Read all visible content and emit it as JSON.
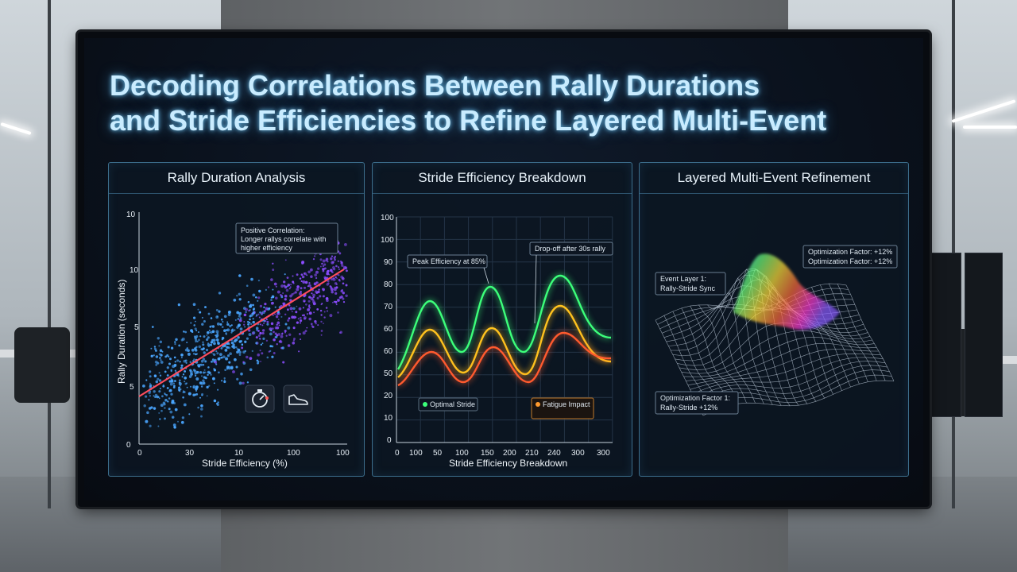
{
  "headline": {
    "line1": "Decoding Correlations Between Rally Durations",
    "line2": "and Stride Efficiencies to Refine Layered Multi-Event"
  },
  "panels": {
    "rally": {
      "title": "Rally Duration Analysis",
      "y_axis_label": "Rally Duration (seconds)",
      "x_axis_label": "Stride Efficiency (%)",
      "y_ticks": [
        "10",
        "10",
        "5",
        "5",
        "0"
      ],
      "x_ticks": [
        "0",
        "30",
        "10",
        "100",
        "100"
      ],
      "callout_line1": "Positive Correlation:",
      "callout_line2": "Longer rallys correlate with",
      "callout_line3": "higher efficiency",
      "icons": [
        "stopwatch-icon",
        "sneaker-icon"
      ]
    },
    "stride": {
      "title": "Stride Efficiency Breakdown",
      "x_axis_label": "Stride Efficiency Breakdown",
      "y_ticks": [
        "100",
        "100",
        "90",
        "80",
        "70",
        "60",
        "60",
        "50",
        "20",
        "10",
        "0"
      ],
      "x_ticks": [
        "0",
        "100",
        "50",
        "100",
        "150",
        "200",
        "210",
        "240",
        "300",
        "300"
      ],
      "peak_label": "Peak Efficiency at 85%",
      "dropoff_label": "Drop-off after 30s rally",
      "optimal_label": "Optimal Stride",
      "fatigue_label": "Fatigue Impact",
      "series_colors": [
        "#3cff7a",
        "#ffc21e",
        "#ff5a2e"
      ]
    },
    "layered": {
      "title": "Layered Multi-Event Refinement",
      "layer_label_line1": "Event Layer 1:",
      "layer_label_line2": "Rally-Stride Sync",
      "opt_top_line1": "Optimization Factor: +12%",
      "opt_top_line2": "Optimization Factor: +12%",
      "opt_bottom_line1": "Optimization Factor 1:",
      "opt_bottom_line2": "Rally-Stride +12%"
    }
  },
  "colors": {
    "accent": "#c9ecff",
    "panel_border": "#3c6e8c",
    "trend_line": "#ff4d5e",
    "scatter_blue": "#4aa6ff",
    "scatter_purple": "#8b4dff"
  }
}
